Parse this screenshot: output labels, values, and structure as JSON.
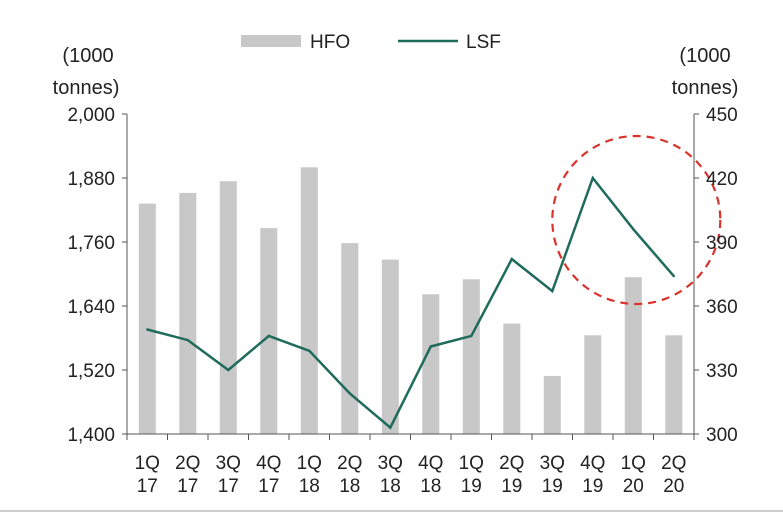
{
  "chart_data": {
    "type": "bar+line",
    "categories": [
      [
        "1Q",
        "17"
      ],
      [
        "2Q",
        "17"
      ],
      [
        "3Q",
        "17"
      ],
      [
        "4Q",
        "17"
      ],
      [
        "1Q",
        "18"
      ],
      [
        "2Q",
        "18"
      ],
      [
        "3Q",
        "18"
      ],
      [
        "4Q",
        "18"
      ],
      [
        "1Q",
        "19"
      ],
      [
        "2Q",
        "19"
      ],
      [
        "3Q",
        "19"
      ],
      [
        "4Q",
        "19"
      ],
      [
        "1Q",
        "20"
      ],
      [
        "2Q",
        "20"
      ]
    ],
    "series": [
      {
        "name": "HFO",
        "type": "bar",
        "axis": "left",
        "color": "#c8c8c8",
        "values": [
          1832,
          1852,
          1874,
          1786,
          1900,
          1758,
          1727,
          1662,
          1690,
          1607,
          1509,
          1585,
          1694,
          1585
        ]
      },
      {
        "name": "LSF",
        "type": "line",
        "axis": "right",
        "color": "#1f6b5c",
        "values": [
          349,
          344,
          330,
          346,
          339,
          319,
          303,
          341,
          346,
          382,
          367,
          420,
          396,
          374
        ]
      }
    ],
    "left_axis": {
      "unit_lines": [
        "(1000",
        "tonnes)"
      ],
      "ylim": [
        1400,
        2000
      ],
      "ticks": [
        1400,
        1520,
        1640,
        1760,
        1880,
        2000
      ],
      "tick_labels": [
        "1,400",
        "1,520",
        "1,640",
        "1,760",
        "1,880",
        "2,000"
      ]
    },
    "right_axis": {
      "unit_lines": [
        "(1000",
        "tonnes)"
      ],
      "ylim": [
        300,
        450
      ],
      "ticks": [
        300,
        330,
        360,
        390,
        420,
        450
      ],
      "tick_labels": [
        "300",
        "330",
        "360",
        "390",
        "420",
        "450"
      ]
    },
    "legend": {
      "placement": "top-center",
      "entries": [
        "HFO",
        "LSF"
      ]
    },
    "annotations": [
      {
        "type": "dashed-circle",
        "color": "#d9322b",
        "around_categories": [
          "4Q 19",
          "1Q 20",
          "2Q 20"
        ]
      }
    ],
    "grid": false
  }
}
